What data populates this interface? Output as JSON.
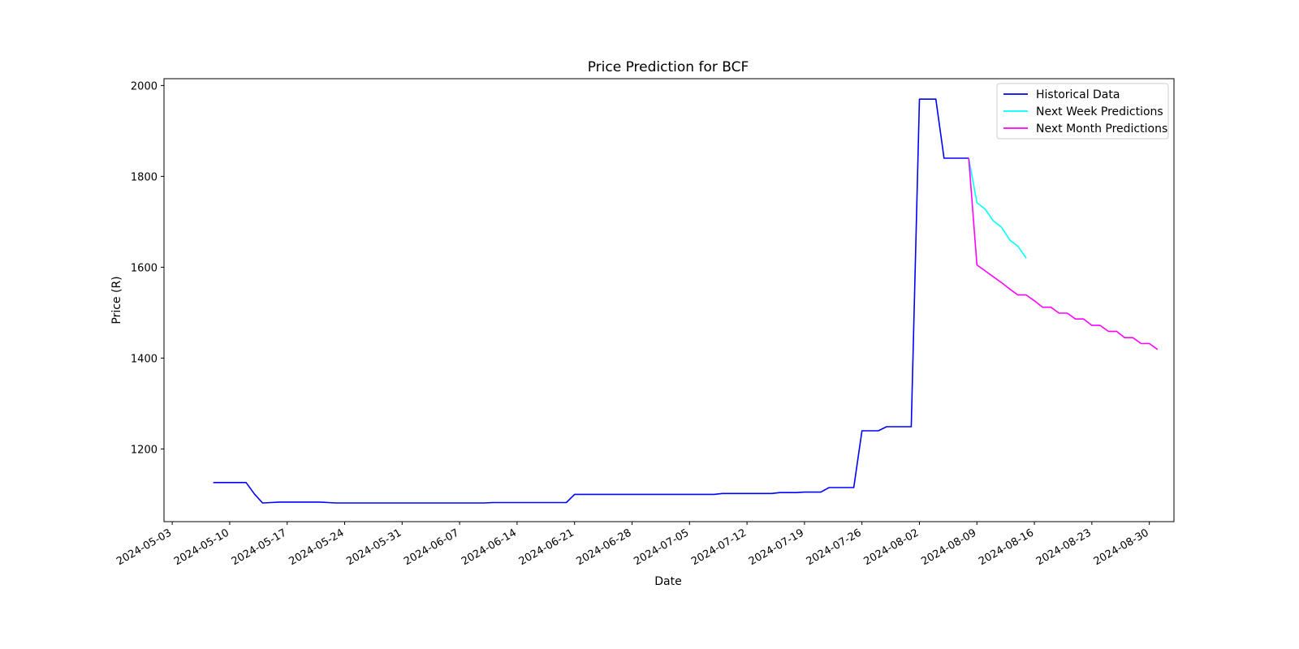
{
  "chart_data": {
    "type": "line",
    "title": "Price Prediction for BCF",
    "xlabel": "Date",
    "ylabel": "Price (R)",
    "xlim": [
      "2024-05-02",
      "2024-09-02"
    ],
    "ylim": [
      1040,
      2015
    ],
    "x_ticks": [
      "2024-05-03",
      "2024-05-10",
      "2024-05-17",
      "2024-05-24",
      "2024-05-31",
      "2024-06-07",
      "2024-06-14",
      "2024-06-21",
      "2024-06-28",
      "2024-07-05",
      "2024-07-12",
      "2024-07-19",
      "2024-07-26",
      "2024-08-02",
      "2024-08-09",
      "2024-08-16",
      "2024-08-23",
      "2024-08-30"
    ],
    "y_ticks": [
      1200,
      1400,
      1600,
      1800,
      2000
    ],
    "grid": false,
    "legend_position": "top-right",
    "series": [
      {
        "name": "Historical Data",
        "color": "#0000ff",
        "points": [
          [
            "2024-05-08",
            1126
          ],
          [
            "2024-05-09",
            1126
          ],
          [
            "2024-05-10",
            1126
          ],
          [
            "2024-05-11",
            1126
          ],
          [
            "2024-05-12",
            1126
          ],
          [
            "2024-05-13",
            1101
          ],
          [
            "2024-05-14",
            1081
          ],
          [
            "2024-05-15",
            1082
          ],
          [
            "2024-05-16",
            1083
          ],
          [
            "2024-05-17",
            1083
          ],
          [
            "2024-05-20",
            1083
          ],
          [
            "2024-05-21",
            1083
          ],
          [
            "2024-05-22",
            1082
          ],
          [
            "2024-05-23",
            1081
          ],
          [
            "2024-05-24",
            1081
          ],
          [
            "2024-06-03",
            1081
          ],
          [
            "2024-06-10",
            1081
          ],
          [
            "2024-06-11",
            1082
          ],
          [
            "2024-06-18",
            1082
          ],
          [
            "2024-06-20",
            1082
          ],
          [
            "2024-06-21",
            1100
          ],
          [
            "2024-06-28",
            1100
          ],
          [
            "2024-07-05",
            1100
          ],
          [
            "2024-07-08",
            1100
          ],
          [
            "2024-07-09",
            1102
          ],
          [
            "2024-07-15",
            1102
          ],
          [
            "2024-07-16",
            1104
          ],
          [
            "2024-07-18",
            1104
          ],
          [
            "2024-07-19",
            1105
          ],
          [
            "2024-07-21",
            1105
          ],
          [
            "2024-07-22",
            1115
          ],
          [
            "2024-07-25",
            1115
          ],
          [
            "2024-07-26",
            1240
          ],
          [
            "2024-07-28",
            1240
          ],
          [
            "2024-07-29",
            1249
          ],
          [
            "2024-07-31",
            1249
          ],
          [
            "2024-08-01",
            1249
          ],
          [
            "2024-08-02",
            1970
          ],
          [
            "2024-08-04",
            1970
          ],
          [
            "2024-08-05",
            1840
          ],
          [
            "2024-08-08",
            1840
          ]
        ]
      },
      {
        "name": "Next Week Predictions",
        "color": "#00ffff",
        "points": [
          [
            "2024-08-08",
            1840
          ],
          [
            "2024-08-09",
            1742
          ],
          [
            "2024-08-10",
            1728
          ],
          [
            "2024-08-11",
            1702
          ],
          [
            "2024-08-12",
            1688
          ],
          [
            "2024-08-13",
            1660
          ],
          [
            "2024-08-14",
            1646
          ],
          [
            "2024-08-15",
            1620
          ]
        ]
      },
      {
        "name": "Next Month Predictions",
        "color": "#ff00ff",
        "points": [
          [
            "2024-08-08",
            1840
          ],
          [
            "2024-08-09",
            1605
          ],
          [
            "2024-08-10",
            1592
          ],
          [
            "2024-08-11",
            1579
          ],
          [
            "2024-08-12",
            1566
          ],
          [
            "2024-08-13",
            1552
          ],
          [
            "2024-08-14",
            1539
          ],
          [
            "2024-08-15",
            1539
          ],
          [
            "2024-08-16",
            1526
          ],
          [
            "2024-08-17",
            1512
          ],
          [
            "2024-08-18",
            1512
          ],
          [
            "2024-08-19",
            1499
          ],
          [
            "2024-08-20",
            1499
          ],
          [
            "2024-08-21",
            1486
          ],
          [
            "2024-08-22",
            1486
          ],
          [
            "2024-08-23",
            1472
          ],
          [
            "2024-08-24",
            1472
          ],
          [
            "2024-08-25",
            1459
          ],
          [
            "2024-08-26",
            1459
          ],
          [
            "2024-08-27",
            1445
          ],
          [
            "2024-08-28",
            1445
          ],
          [
            "2024-08-29",
            1432
          ],
          [
            "2024-08-30",
            1432
          ],
          [
            "2024-08-31",
            1419
          ]
        ]
      }
    ]
  }
}
